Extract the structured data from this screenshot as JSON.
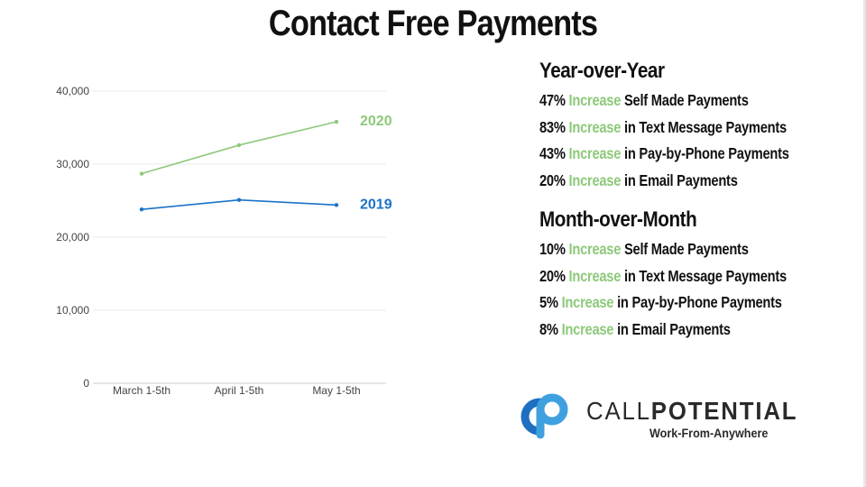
{
  "title": "Contact Free Payments",
  "chart_data": {
    "type": "line",
    "categories": [
      "March 1-5th",
      "April 1-5th",
      "May 1-5th"
    ],
    "series": [
      {
        "name": "2020",
        "values": [
          28700,
          32600,
          35800
        ],
        "color": "#8dc97a"
      },
      {
        "name": "2019",
        "values": [
          23800,
          25100,
          24400
        ],
        "color": "#1a73c8"
      }
    ],
    "yticks": [
      "0",
      "10,000",
      "20,000",
      "30,000",
      "40,000"
    ],
    "ytick_values": [
      0,
      10000,
      20000,
      30000,
      40000
    ],
    "ylim": [
      0,
      40000
    ],
    "grid": true,
    "legend": "inline-right"
  },
  "stats": {
    "highlight_color": "#8dc97a",
    "sections": [
      {
        "heading": "Year-over-Year",
        "lines": [
          {
            "pct": "47%",
            "word": "Increase",
            "rest": "Self Made Payments"
          },
          {
            "pct": "83%",
            "word": "Increase",
            "rest": "in Text Message Payments"
          },
          {
            "pct": "43%",
            "word": "Increase",
            "rest": "in Pay-by-Phone Payments"
          },
          {
            "pct": "20%",
            "word": "Increase",
            "rest": "in Email Payments"
          }
        ]
      },
      {
        "heading": "Month-over-Month",
        "lines": [
          {
            "pct": "10%",
            "word": "Increase",
            "rest": "Self Made Payments"
          },
          {
            "pct": "20%",
            "word": "Increase",
            "rest": "in Text Message Payments"
          },
          {
            "pct": "5% ",
            "word": "Increase",
            "rest": "in Pay-by-Phone Payments"
          },
          {
            "pct": "8%",
            "word": "Increase",
            "rest": "in Email Payments"
          }
        ]
      }
    ]
  },
  "logo": {
    "name_pre": "CALL",
    "name_post": "POTENTIAL",
    "tagline": "Work-From-Anywhere",
    "icon": "cp-logo-icon",
    "colors": {
      "blue": "#1e6fc2",
      "light_blue": "#3fa0e0"
    }
  }
}
